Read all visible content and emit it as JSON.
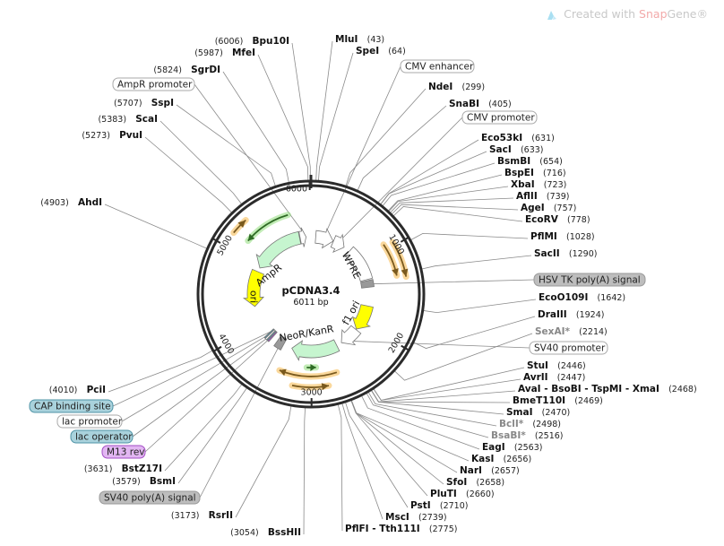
{
  "watermark": {
    "prefix": "Created with ",
    "snap": "Snap",
    "gene": "Gene®",
    "icon": "snapgene-logo-icon"
  },
  "plasmid": {
    "name": "pCDNA3.4",
    "length_label": "6011 bp",
    "length": 6011
  },
  "ticks": [
    "1000",
    "2000",
    "3000",
    "4000",
    "5000",
    "6000"
  ],
  "enzymes": [
    {
      "name": "MluI",
      "pos": 43
    },
    {
      "name": "SpeI",
      "pos": 64
    },
    {
      "name": "NdeI",
      "pos": 299
    },
    {
      "name": "SnaBI",
      "pos": 405
    },
    {
      "name": "Eco53kI",
      "pos": 631
    },
    {
      "name": "SacI",
      "pos": 633
    },
    {
      "name": "BsmBI",
      "pos": 654
    },
    {
      "name": "BspEI",
      "pos": 716
    },
    {
      "name": "XbaI",
      "pos": 723
    },
    {
      "name": "AflII",
      "pos": 739
    },
    {
      "name": "AgeI",
      "pos": 757
    },
    {
      "name": "EcoRV",
      "pos": 778
    },
    {
      "name": "PflMI",
      "pos": 1028
    },
    {
      "name": "SacII",
      "pos": 1290
    },
    {
      "name": "EcoO109I",
      "pos": 1642
    },
    {
      "name": "DraIII",
      "pos": 1924
    },
    {
      "name": "SexAI*",
      "pos": 2214,
      "dim": true
    },
    {
      "name": "StuI",
      "pos": 2446
    },
    {
      "name": "AvrII",
      "pos": 2447
    },
    {
      "name": "AvaI - BsoBI - TspMI - XmaI",
      "pos": 2468
    },
    {
      "name": "BmeT110I",
      "pos": 2469
    },
    {
      "name": "SmaI",
      "pos": 2470
    },
    {
      "name": "BclI*",
      "pos": 2498,
      "dim": true
    },
    {
      "name": "BsaBI*",
      "pos": 2516,
      "dim": true
    },
    {
      "name": "EagI",
      "pos": 2563
    },
    {
      "name": "KasI",
      "pos": 2656
    },
    {
      "name": "NarI",
      "pos": 2657
    },
    {
      "name": "SfoI",
      "pos": 2658
    },
    {
      "name": "PluTI",
      "pos": 2660
    },
    {
      "name": "PstI",
      "pos": 2710
    },
    {
      "name": "MscI",
      "pos": 2739
    },
    {
      "name": "PflFI - Tth111I",
      "pos": 2775
    },
    {
      "name": "BssHII",
      "pos": 3054
    },
    {
      "name": "RsrII",
      "pos": 3173
    },
    {
      "name": "BsmI",
      "pos": 3579
    },
    {
      "name": "BstZ17I",
      "pos": 3631
    },
    {
      "name": "PciI",
      "pos": 4010
    },
    {
      "name": "AhdI",
      "pos": 4903
    },
    {
      "name": "PvuI",
      "pos": 5273
    },
    {
      "name": "ScaI",
      "pos": 5383
    },
    {
      "name": "SspI",
      "pos": 5707
    },
    {
      "name": "SgrDI",
      "pos": 5824
    },
    {
      "name": "MfeI",
      "pos": 5987
    },
    {
      "name": "Bpu10I",
      "pos": 6006
    }
  ],
  "feature_callouts": [
    {
      "name": "AmpR promoter",
      "fill": "#ffffff",
      "stroke": "#aaaaaa"
    },
    {
      "name": "CMV enhancer",
      "fill": "#ffffff",
      "stroke": "#aaaaaa"
    },
    {
      "name": "CMV promoter",
      "fill": "#ffffff",
      "stroke": "#aaaaaa"
    },
    {
      "name": "HSV TK poly(A) signal",
      "fill": "#bdbdbd",
      "stroke": "#999999"
    },
    {
      "name": "SV40 promoter",
      "fill": "#ffffff",
      "stroke": "#aaaaaa"
    },
    {
      "name": "CAP binding site",
      "fill": "#a9d2dc",
      "stroke": "#4e93a6"
    },
    {
      "name": "lac promoter",
      "fill": "#ffffff",
      "stroke": "#aaaaaa"
    },
    {
      "name": "lac operator",
      "fill": "#a9d2dc",
      "stroke": "#4e93a6"
    },
    {
      "name": "M13 rev",
      "fill": "#e2b6f2",
      "stroke": "#a24cc4"
    },
    {
      "name": "SV40 poly(A) signal",
      "fill": "#bdbdbd",
      "stroke": "#999999"
    }
  ],
  "inner_labels": [
    "AmpR",
    "ori",
    "WPRE",
    "f1 ori",
    "NeoR/KanR"
  ],
  "colors": {
    "ring": "#2b2b2b",
    "resistance": "#c6f5cf",
    "origin": "#ffff00",
    "neutral": "#ffffff",
    "polyA": "#999999",
    "orf": "#f6b84a",
    "orf_line": "#7a5a1e",
    "orf_green": "#8fdc7a"
  }
}
